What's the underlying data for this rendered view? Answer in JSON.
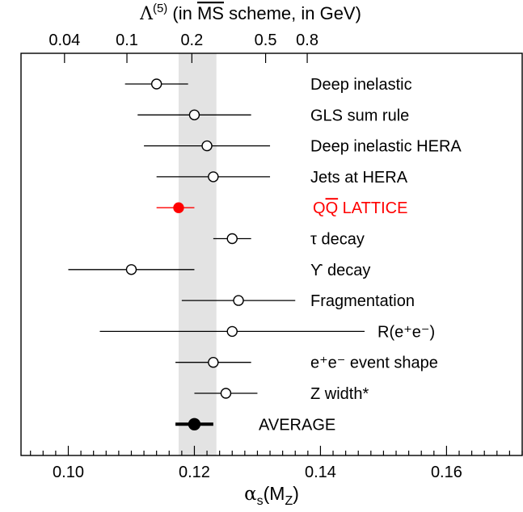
{
  "chart_data": {
    "type": "scatter",
    "subtype": "error-bar dot plot",
    "xlabel": {
      "base": "α",
      "sub1": "s",
      "mid": "(M",
      "sub2": "Z",
      "end": ")"
    },
    "top_axis": {
      "label": {
        "pre": "Λ",
        "sup": "(5)",
        "mid": " (in ",
        "ms": "MS",
        "post": " scheme, in GeV)"
      },
      "tick_labels": [
        "0.04",
        "0.1",
        "0.2",
        "0.5",
        "0.8"
      ],
      "tick_positions_alpha": [
        0.0994,
        0.1093,
        0.1196,
        0.1313,
        0.1379
      ]
    },
    "xlim": [
      0.0925,
      0.172
    ],
    "x_tick_labels": [
      "0.10",
      "0.12",
      "0.14",
      "0.16"
    ],
    "x_major_ticks": [
      0.1,
      0.12,
      0.14,
      0.16
    ],
    "x_minor_step": 0.002,
    "band": {
      "low": 0.1175,
      "high": 0.1235,
      "color": "#e3e3e3"
    },
    "series": [
      {
        "label": "Deep inelastic",
        "value": 0.114,
        "low": 0.109,
        "high": 0.119,
        "marker": "open",
        "color": "#000000"
      },
      {
        "label": "GLS sum rule",
        "value": 0.12,
        "low": 0.111,
        "high": 0.129,
        "marker": "open",
        "color": "#000000"
      },
      {
        "label": "Deep inelastic HERA",
        "value": 0.122,
        "low": 0.112,
        "high": 0.132,
        "marker": "open",
        "color": "#000000"
      },
      {
        "label": "Jets at HERA",
        "value": 0.123,
        "low": 0.114,
        "high": 0.132,
        "marker": "open",
        "color": "#000000"
      },
      {
        "label": "QQ LATTICE",
        "label_overline": "Q",
        "value": 0.1175,
        "low": 0.114,
        "high": 0.12,
        "marker": "filled",
        "color": "#ff0000"
      },
      {
        "label": "τ decay",
        "value": 0.126,
        "low": 0.123,
        "high": 0.129,
        "marker": "open",
        "color": "#000000"
      },
      {
        "label": "ϒ decay",
        "value": 0.11,
        "low": 0.1,
        "high": 0.12,
        "marker": "open",
        "color": "#000000"
      },
      {
        "label": "Fragmentation",
        "value": 0.127,
        "low": 0.118,
        "high": 0.136,
        "marker": "open",
        "color": "#000000"
      },
      {
        "label": "R(e⁺e⁻)",
        "value": 0.126,
        "low": 0.105,
        "high": 0.147,
        "marker": "open",
        "color": "#000000"
      },
      {
        "label": "e⁺e⁻ event shape",
        "value": 0.123,
        "low": 0.117,
        "high": 0.129,
        "marker": "open",
        "color": "#000000"
      },
      {
        "label": "Z width*",
        "value": 0.125,
        "low": 0.12,
        "high": 0.13,
        "marker": "open",
        "color": "#000000"
      },
      {
        "label": "AVERAGE",
        "value": 0.12,
        "low": 0.117,
        "high": 0.123,
        "marker": "filled-bold",
        "color": "#000000"
      }
    ]
  }
}
